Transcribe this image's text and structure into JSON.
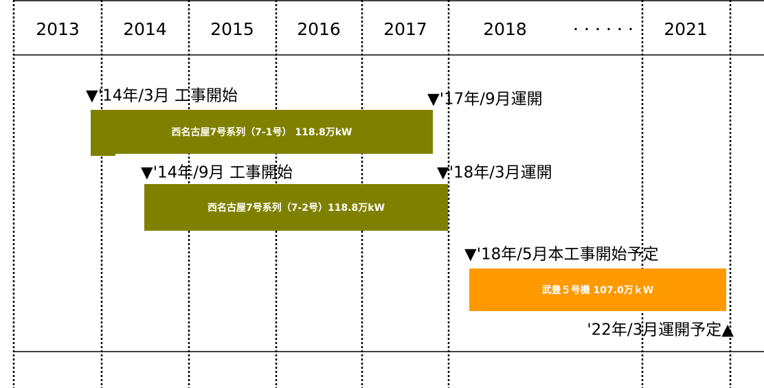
{
  "header": {
    "years": [
      "2013",
      "2014",
      "2015",
      "2016",
      "2017",
      "2018",
      "・・・・・・",
      "2021"
    ]
  },
  "projects": [
    {
      "name": "西名古屋7号系列（7-1号） 118.8万kW",
      "start": "▼'14年/3月 工事開始",
      "end": "▼'17年/9月運開"
    },
    {
      "name": "西名古屋7号系列（7-2号）118.8万kW",
      "start": "▼'14年/9月 工事開始",
      "end": "▼'18年/3月運開"
    },
    {
      "name": "武豊５号機 107.0万ｋW",
      "start": "▼'18年/5月本工事開始予定",
      "end": "'22年/3月運開予定▲"
    }
  ]
}
